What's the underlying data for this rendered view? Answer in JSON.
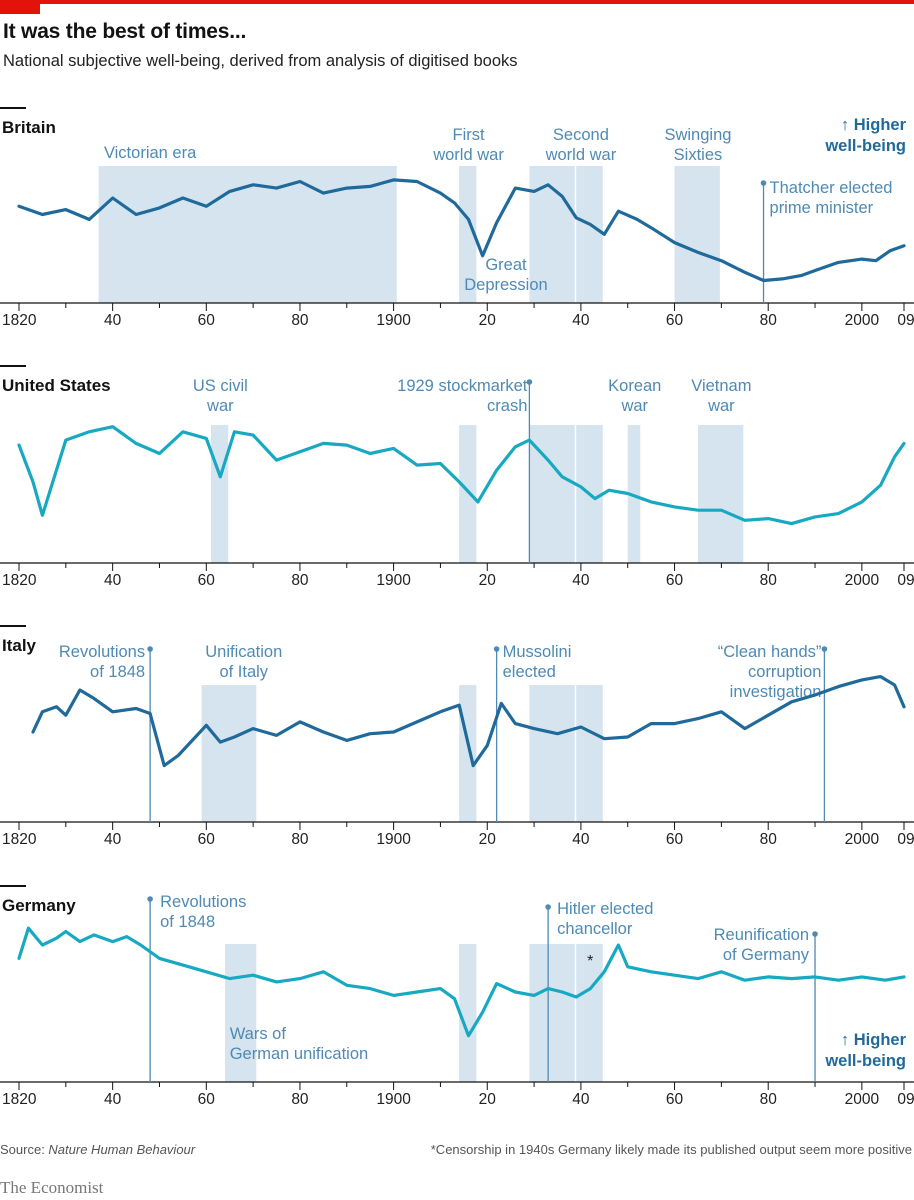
{
  "header": {
    "title": "It was the best of times...",
    "subtitle": "National subjective well-being, derived from analysis of digitised books"
  },
  "footer": {
    "source_label": "Source: ",
    "source_name": "Nature Human Behaviour",
    "note": "*Censorship in 1940s Germany likely made its published output seem more positive",
    "brand": "The Economist"
  },
  "colors": {
    "dark": "#1f6a9a",
    "light": "#18a9c2",
    "shade": "#d6e4ef",
    "ann": "#4f8ab3",
    "axis": "#121212",
    "red": "#e3120b"
  },
  "chart_data": [
    {
      "type": "line",
      "country": "Britain",
      "color": "#1f6a9a",
      "xlim": [
        1820,
        2009
      ],
      "x_ticks": [
        "1820",
        "40",
        "60",
        "80",
        "1900",
        "20",
        "40",
        "60",
        "80",
        "2000",
        "09"
      ],
      "higher_label": [
        "↑ Higher",
        "well-being"
      ],
      "shaded_periods": [
        {
          "start": 1837,
          "end": 1901,
          "label": [
            "Victorian era"
          ]
        },
        {
          "start": 1914,
          "end": 1918,
          "label": [
            "First",
            "world war"
          ]
        },
        {
          "start": 1929,
          "end": 1939,
          "label": [
            "Great",
            "Depression"
          ]
        },
        {
          "start": 1939,
          "end": 1945,
          "label": [
            "Second",
            "world war"
          ]
        },
        {
          "start": 1960,
          "end": 1970,
          "label": [
            "Swinging",
            "Sixties"
          ]
        }
      ],
      "events": [
        {
          "year": 1979,
          "label": [
            "Thatcher elected",
            "prime minister"
          ]
        }
      ],
      "x": [
        1820,
        1825,
        1830,
        1835,
        1840,
        1845,
        1850,
        1855,
        1860,
        1865,
        1870,
        1875,
        1880,
        1885,
        1890,
        1895,
        1900,
        1905,
        1910,
        1913,
        1916,
        1919,
        1922,
        1926,
        1930,
        1933,
        1936,
        1939,
        1942,
        1945,
        1948,
        1952,
        1955,
        1960,
        1965,
        1970,
        1975,
        1979,
        1983,
        1987,
        1991,
        1995,
        2000,
        2003,
        2006,
        2009
      ],
      "y": [
        0.55,
        0.5,
        0.53,
        0.47,
        0.6,
        0.5,
        0.54,
        0.6,
        0.55,
        0.64,
        0.68,
        0.66,
        0.7,
        0.63,
        0.66,
        0.67,
        0.71,
        0.7,
        0.63,
        0.57,
        0.47,
        0.25,
        0.45,
        0.66,
        0.64,
        0.68,
        0.61,
        0.48,
        0.44,
        0.38,
        0.52,
        0.47,
        0.42,
        0.33,
        0.27,
        0.22,
        0.15,
        0.1,
        0.11,
        0.13,
        0.17,
        0.21,
        0.23,
        0.22,
        0.28,
        0.31
      ]
    },
    {
      "type": "line",
      "country": "United States",
      "color": "#18a9c2",
      "xlim": [
        1820,
        2009
      ],
      "x_ticks": [
        "1820",
        "40",
        "60",
        "80",
        "1900",
        "20",
        "40",
        "60",
        "80",
        "2000",
        "09"
      ],
      "shaded_periods": [
        {
          "start": 1861,
          "end": 1865,
          "label": [
            "US civil",
            "war"
          ]
        },
        {
          "start": 1914,
          "end": 1918,
          "label": []
        },
        {
          "start": 1929,
          "end": 1939,
          "label": []
        },
        {
          "start": 1939,
          "end": 1945,
          "label": []
        },
        {
          "start": 1950,
          "end": 1953,
          "label": [
            "Korean",
            "war"
          ]
        },
        {
          "start": 1965,
          "end": 1975,
          "label": [
            "Vietnam",
            "war"
          ]
        }
      ],
      "events": [
        {
          "year": 1929,
          "label": [
            "1929 stockmarket",
            "crash"
          ]
        }
      ],
      "x": [
        1820,
        1823,
        1825,
        1830,
        1835,
        1840,
        1845,
        1850,
        1855,
        1860,
        1863,
        1866,
        1870,
        1875,
        1880,
        1885,
        1890,
        1895,
        1900,
        1905,
        1910,
        1914,
        1918,
        1922,
        1926,
        1929,
        1933,
        1936,
        1940,
        1943,
        1946,
        1950,
        1955,
        1960,
        1965,
        1970,
        1975,
        1980,
        1985,
        1990,
        1995,
        2000,
        2004,
        2007,
        2009
      ],
      "y": [
        0.67,
        0.45,
        0.25,
        0.7,
        0.75,
        0.78,
        0.68,
        0.62,
        0.75,
        0.71,
        0.48,
        0.75,
        0.73,
        0.58,
        0.63,
        0.68,
        0.67,
        0.62,
        0.65,
        0.55,
        0.56,
        0.45,
        0.33,
        0.52,
        0.66,
        0.7,
        0.58,
        0.48,
        0.42,
        0.35,
        0.4,
        0.38,
        0.33,
        0.3,
        0.28,
        0.28,
        0.22,
        0.23,
        0.2,
        0.24,
        0.26,
        0.33,
        0.43,
        0.6,
        0.68
      ]
    },
    {
      "type": "line",
      "country": "Italy",
      "color": "#1f6a9a",
      "xlim": [
        1820,
        2009
      ],
      "x_ticks": [
        "1820",
        "40",
        "60",
        "80",
        "1900",
        "20",
        "40",
        "60",
        "80",
        "2000",
        "09"
      ],
      "shaded_periods": [
        {
          "start": 1859,
          "end": 1871,
          "label": [
            "Unification",
            "of Italy"
          ]
        },
        {
          "start": 1914,
          "end": 1918,
          "label": []
        },
        {
          "start": 1929,
          "end": 1939,
          "label": []
        },
        {
          "start": 1939,
          "end": 1945,
          "label": []
        }
      ],
      "events": [
        {
          "year": 1848,
          "label": [
            "Revolutions",
            "of 1848"
          ]
        },
        {
          "year": 1922,
          "label": [
            "Mussolini",
            "elected"
          ]
        },
        {
          "year": 1992,
          "label": [
            "“Clean hands”",
            "corruption",
            "investigation"
          ]
        }
      ],
      "x": [
        1823,
        1825,
        1828,
        1830,
        1833,
        1836,
        1840,
        1845,
        1848,
        1851,
        1854,
        1857,
        1860,
        1863,
        1866,
        1870,
        1875,
        1880,
        1885,
        1890,
        1895,
        1900,
        1905,
        1910,
        1914,
        1917,
        1920,
        1923,
        1926,
        1930,
        1935,
        1940,
        1945,
        1950,
        1955,
        1960,
        1965,
        1970,
        1975,
        1980,
        1985,
        1990,
        1995,
        2000,
        2004,
        2007,
        2009
      ],
      "y": [
        0.5,
        0.62,
        0.65,
        0.6,
        0.75,
        0.7,
        0.62,
        0.64,
        0.61,
        0.3,
        0.36,
        0.45,
        0.54,
        0.44,
        0.47,
        0.52,
        0.48,
        0.56,
        0.5,
        0.45,
        0.49,
        0.5,
        0.56,
        0.62,
        0.66,
        0.3,
        0.42,
        0.67,
        0.55,
        0.52,
        0.49,
        0.53,
        0.46,
        0.47,
        0.55,
        0.55,
        0.58,
        0.62,
        0.52,
        0.6,
        0.68,
        0.72,
        0.77,
        0.81,
        0.83,
        0.78,
        0.65
      ]
    },
    {
      "type": "line",
      "country": "Germany",
      "color": "#18a9c2",
      "xlim": [
        1820,
        2009
      ],
      "x_ticks": [
        "1820",
        "40",
        "60",
        "80",
        "1900",
        "20",
        "40",
        "60",
        "80",
        "2000",
        "09"
      ],
      "higher_label": [
        "↑ Higher",
        "well-being"
      ],
      "asterisk": "*",
      "shaded_periods": [
        {
          "start": 1864,
          "end": 1871,
          "label": [
            "Wars of",
            "German unification"
          ]
        },
        {
          "start": 1914,
          "end": 1918,
          "label": []
        },
        {
          "start": 1929,
          "end": 1939,
          "label": []
        },
        {
          "start": 1939,
          "end": 1945,
          "label": []
        }
      ],
      "events": [
        {
          "year": 1848,
          "label": [
            "Revolutions",
            "of 1848"
          ]
        },
        {
          "year": 1933,
          "label": [
            "Hitler elected",
            "chancellor"
          ]
        },
        {
          "year": 1990,
          "label": [
            "Reunification",
            "of Germany"
          ]
        }
      ],
      "x": [
        1820,
        1822,
        1825,
        1828,
        1830,
        1833,
        1836,
        1840,
        1843,
        1846,
        1850,
        1855,
        1860,
        1865,
        1870,
        1875,
        1880,
        1885,
        1890,
        1895,
        1900,
        1905,
        1910,
        1913,
        1916,
        1919,
        1922,
        1926,
        1930,
        1933,
        1936,
        1939,
        1942,
        1945,
        1948,
        1950,
        1955,
        1960,
        1965,
        1970,
        1975,
        1980,
        1985,
        1990,
        1995,
        2000,
        2005,
        2009
      ],
      "y": [
        0.7,
        0.88,
        0.78,
        0.82,
        0.86,
        0.8,
        0.84,
        0.8,
        0.83,
        0.78,
        0.7,
        0.66,
        0.62,
        0.58,
        0.6,
        0.56,
        0.58,
        0.62,
        0.54,
        0.52,
        0.48,
        0.5,
        0.52,
        0.46,
        0.24,
        0.38,
        0.55,
        0.5,
        0.48,
        0.52,
        0.5,
        0.47,
        0.52,
        0.62,
        0.78,
        0.65,
        0.62,
        0.6,
        0.58,
        0.62,
        0.57,
        0.59,
        0.58,
        0.59,
        0.57,
        0.59,
        0.57,
        0.59
      ]
    }
  ]
}
